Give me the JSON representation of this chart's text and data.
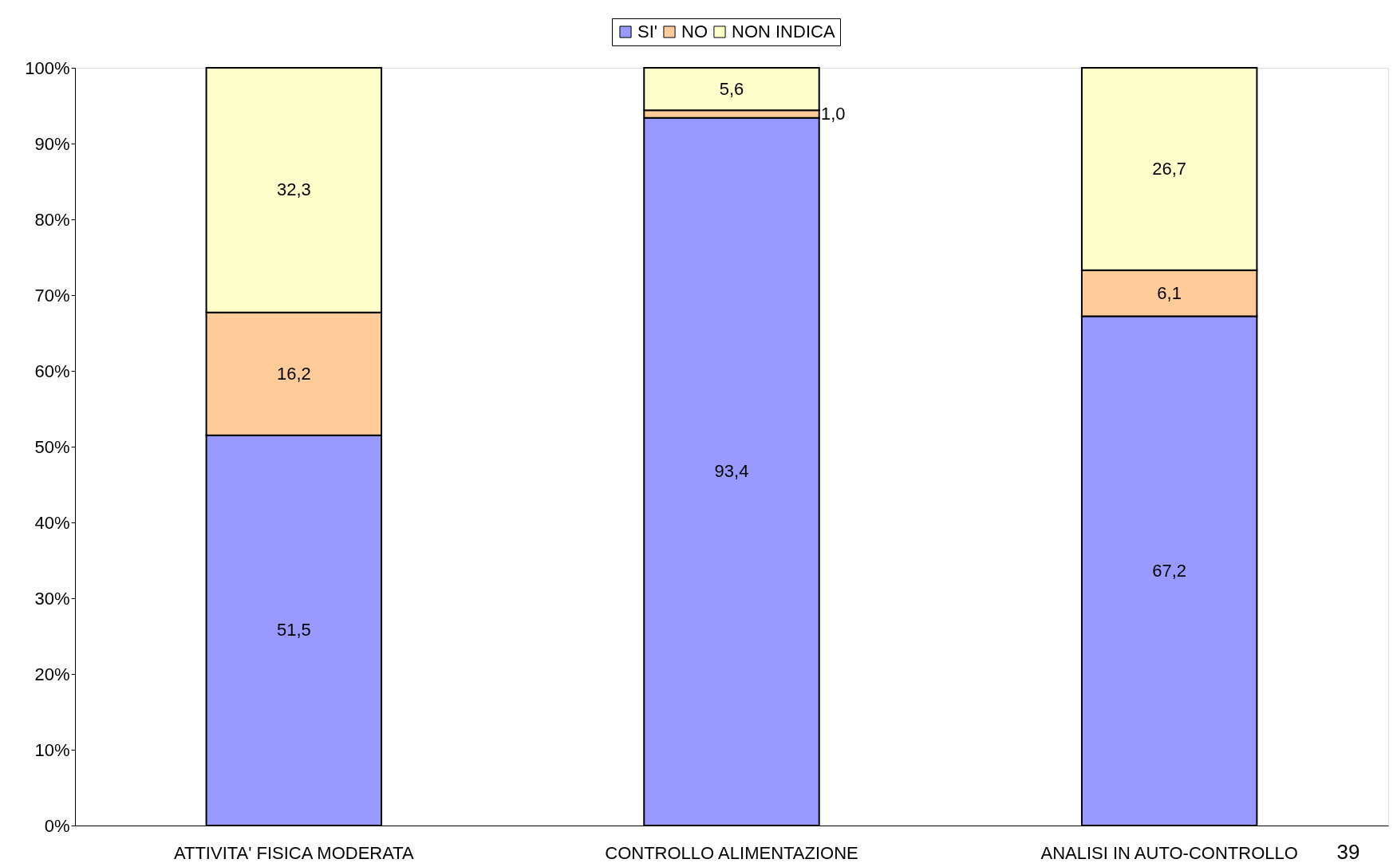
{
  "chart_data": {
    "type": "bar",
    "stacked": true,
    "categories": [
      "ATTIVITA' FISICA MODERATA",
      "CONTROLLO ALIMENTAZIONE",
      "ANALISI IN AUTO-CONTROLLO"
    ],
    "series": [
      {
        "name": "SI'",
        "color": "#9999ff",
        "values": [
          51.5,
          93.4,
          67.2
        ],
        "value_labels": [
          "51,5",
          "93,4",
          "67,2"
        ]
      },
      {
        "name": "NO",
        "color": "#ffcc99",
        "values": [
          16.2,
          1.0,
          6.1
        ],
        "value_labels": [
          "16,2",
          "1,0",
          "6,1"
        ]
      },
      {
        "name": "NON INDICA",
        "color": "#ffffcc",
        "values": [
          32.3,
          5.6,
          26.7
        ],
        "value_labels": [
          "32,3",
          "5,6",
          "26,7"
        ]
      }
    ],
    "ylim": [
      0,
      100
    ],
    "yticks": [
      {
        "value": 0,
        "label": "0%"
      },
      {
        "value": 10,
        "label": "10%"
      },
      {
        "value": 20,
        "label": "20%"
      },
      {
        "value": 30,
        "label": "30%"
      },
      {
        "value": 40,
        "label": "40%"
      },
      {
        "value": 50,
        "label": "50%"
      },
      {
        "value": 60,
        "label": "60%"
      },
      {
        "value": 70,
        "label": "70%"
      },
      {
        "value": 80,
        "label": "80%"
      },
      {
        "value": 90,
        "label": "90%"
      },
      {
        "value": 100,
        "label": "100%"
      }
    ],
    "legend": "top",
    "grid": false,
    "annotations": [
      "39"
    ]
  }
}
